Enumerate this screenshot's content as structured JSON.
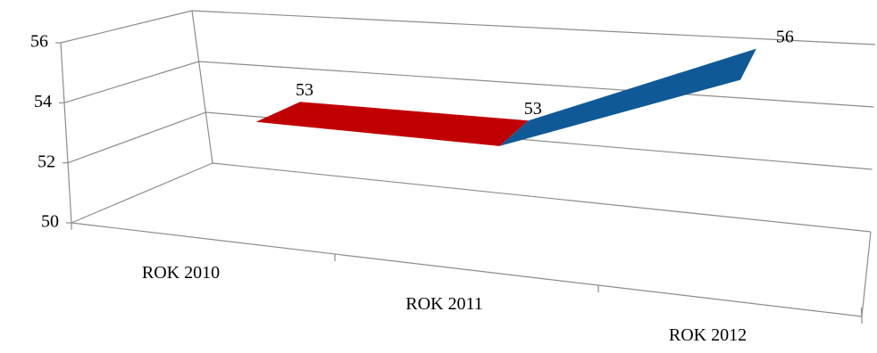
{
  "chart_data": {
    "type": "line3d",
    "categories": [
      "ROK 2010",
      "ROK 2011",
      "ROK 2012"
    ],
    "values": [
      53,
      53,
      56
    ],
    "segment_colors": [
      "#c00000",
      "#0f5a96"
    ],
    "ylim": [
      50,
      56
    ],
    "yticks": [
      50,
      52,
      54,
      56
    ],
    "grid": true
  }
}
